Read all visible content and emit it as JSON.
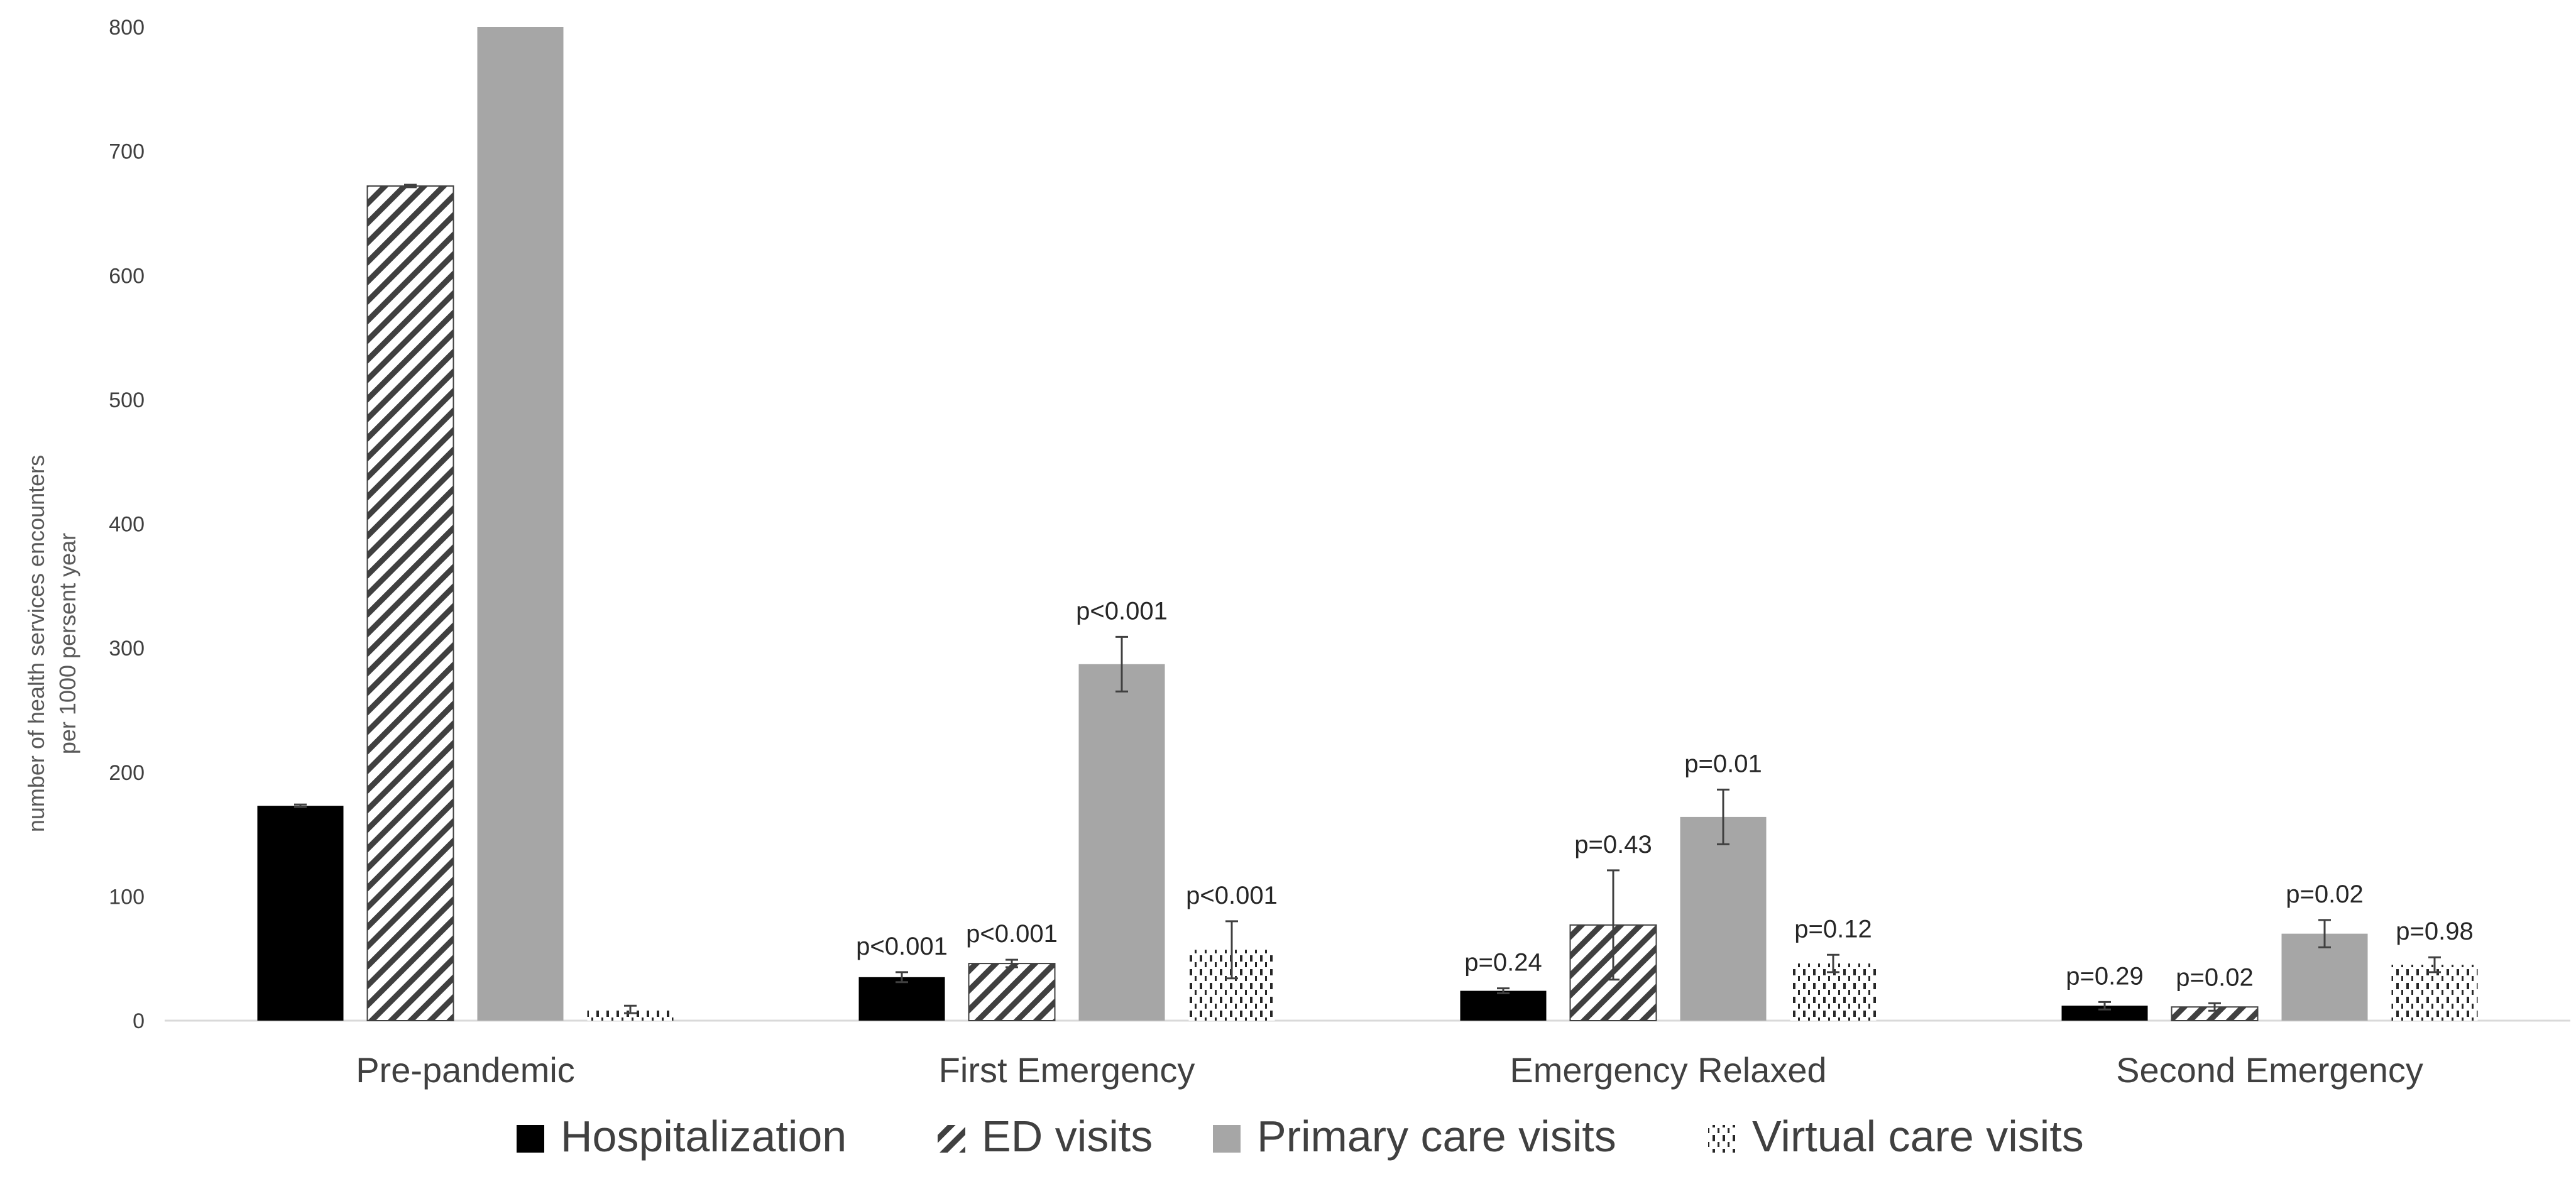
{
  "chart_data": {
    "type": "bar",
    "title": "",
    "xlabel": "",
    "ylabel": "number of health services encounters per 1000 persent year",
    "ylabel_lines": [
      "number of health services encounters",
      "per 1000 persent year"
    ],
    "ylim": [
      0,
      800
    ],
    "yticks": [
      "0",
      "100",
      "200",
      "300",
      "400",
      "500",
      "600",
      "700",
      "800"
    ],
    "grid": false,
    "legend_position": "bottom",
    "categories": [
      "Pre-pandemic",
      "First Emergency",
      "Emergency Relaxed",
      "Second Emergency"
    ],
    "series": [
      {
        "name": "Hospitalization",
        "pattern": "solid-black",
        "color": "#000000",
        "values": [
          173,
          35,
          24,
          12
        ],
        "errors": [
          1,
          4,
          2,
          3
        ],
        "p_labels": [
          "",
          "p<0.001",
          "p=0.24",
          "p=0.29"
        ]
      },
      {
        "name": "ED visits",
        "pattern": "diagonal-hatch",
        "color": "#404040",
        "values": [
          672,
          46,
          77,
          11
        ],
        "errors": [
          1,
          3,
          44,
          3
        ],
        "p_labels": [
          "",
          "p<0.001",
          "p=0.43",
          "p=0.02"
        ]
      },
      {
        "name": "Primary care visits",
        "pattern": "solid-gray",
        "color": "#a6a6a6",
        "values": [
          800,
          287,
          164,
          70
        ],
        "errors": [
          0,
          22,
          22,
          11
        ],
        "p_labels": [
          "",
          "p<0.001",
          "p=0.01",
          "p=0.02"
        ]
      },
      {
        "name": "Virtual care visits",
        "pattern": "dashed-vertical",
        "color": "#262626",
        "values": [
          9,
          57,
          46,
          45
        ],
        "errors": [
          3,
          23,
          7,
          6
        ],
        "p_labels": [
          "",
          "p<0.001",
          "p=0.12",
          "p=0.98"
        ]
      }
    ]
  }
}
